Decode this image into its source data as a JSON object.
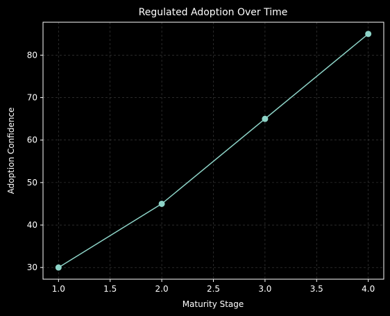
{
  "chart_data": {
    "type": "line",
    "title": "Regulated Adoption Over Time",
    "x_label": "Maturity Stage",
    "y_label": "Adoption Confidence",
    "x": [
      1,
      2,
      3,
      4
    ],
    "series": [
      {
        "name": "Adoption Confidence",
        "color": "#8dd3c7",
        "values": [
          30,
          45,
          65,
          85
        ]
      }
    ],
    "xlim": [
      0.85,
      4.15
    ],
    "xticks": [
      {
        "value": 1,
        "label": "1.0"
      },
      {
        "value": 1.5,
        "label": "1.5"
      },
      {
        "value": 2,
        "label": "2.0"
      },
      {
        "value": 2.5,
        "label": "2.5"
      },
      {
        "value": 3,
        "label": "3.0"
      },
      {
        "value": 3.5,
        "label": "3.5"
      },
      {
        "value": 4,
        "label": "4.0"
      }
    ],
    "ylim": [
      27.25,
      87.75
    ],
    "yticks": [
      30,
      40,
      50,
      60,
      70,
      80
    ],
    "grid": true
  }
}
